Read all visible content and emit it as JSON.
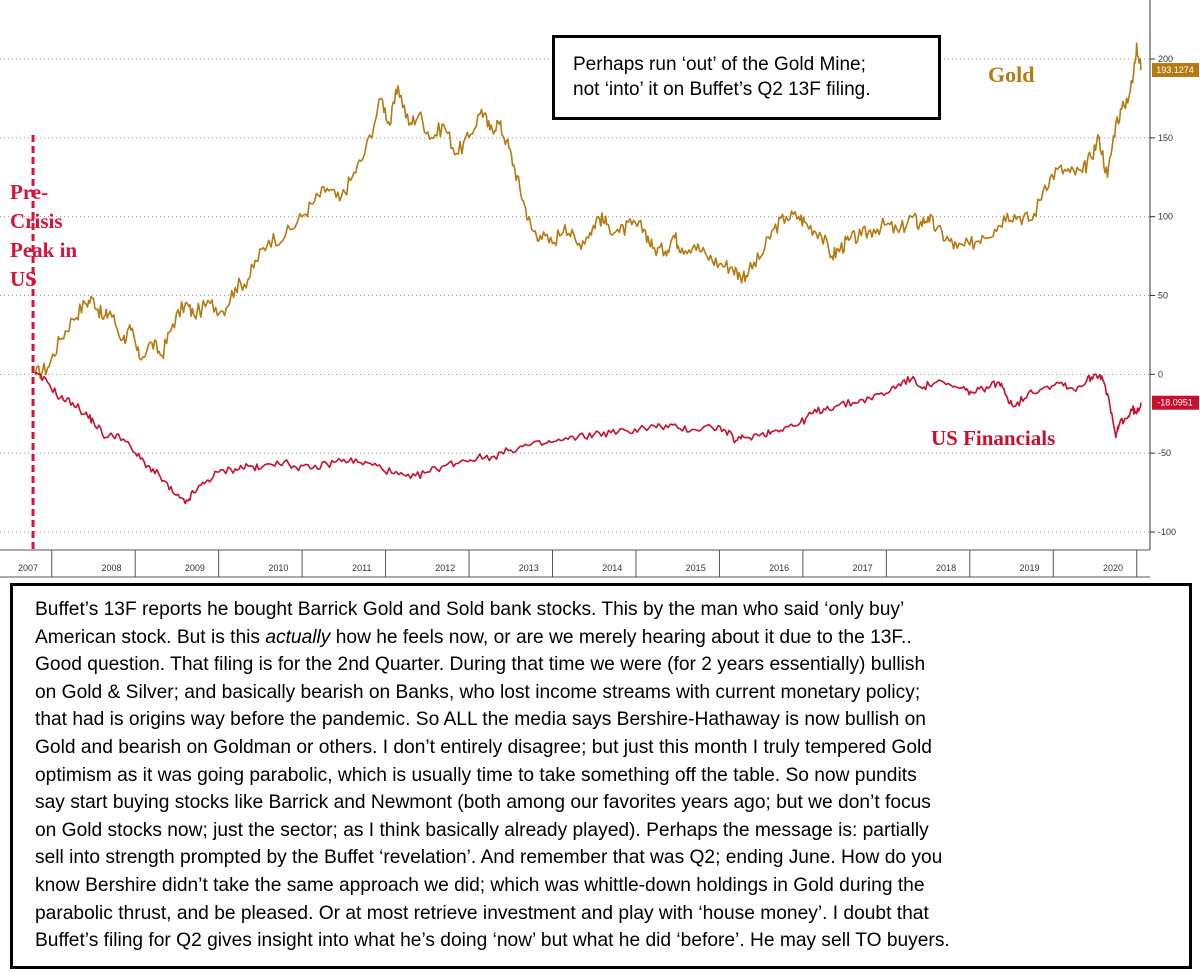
{
  "chart_data": {
    "type": "line",
    "title": "",
    "xlabel": "",
    "ylabel": "",
    "x_ticks": [
      "2007",
      "2008",
      "2009",
      "2010",
      "2011",
      "2012",
      "2013",
      "2014",
      "2015",
      "2016",
      "2017",
      "2018",
      "2019",
      "2020"
    ],
    "y_ticks": [
      200,
      150,
      100,
      50,
      0,
      -50,
      -100
    ],
    "ylim": [
      -110,
      212
    ],
    "xlim": [
      2007.25,
      2020.6
    ],
    "grid": true,
    "axis_side": "right",
    "series": [
      {
        "name": "Gold",
        "color": "#b57a12",
        "end_value": "193.1274",
        "points": [
          [
            2007.3,
            0
          ],
          [
            2007.45,
            4
          ],
          [
            2007.6,
            22
          ],
          [
            2007.75,
            35
          ],
          [
            2007.9,
            45
          ],
          [
            2008.0,
            48
          ],
          [
            2008.12,
            35
          ],
          [
            2008.2,
            40
          ],
          [
            2008.35,
            22
          ],
          [
            2008.45,
            28
          ],
          [
            2008.55,
            10
          ],
          [
            2008.7,
            20
          ],
          [
            2008.82,
            12
          ],
          [
            2008.95,
            32
          ],
          [
            2009.1,
            45
          ],
          [
            2009.2,
            38
          ],
          [
            2009.4,
            45
          ],
          [
            2009.55,
            40
          ],
          [
            2009.7,
            55
          ],
          [
            2009.85,
            60
          ],
          [
            2009.95,
            72
          ],
          [
            2010.1,
            85
          ],
          [
            2010.3,
            88
          ],
          [
            2010.5,
            100
          ],
          [
            2010.65,
            110
          ],
          [
            2010.8,
            118
          ],
          [
            2010.95,
            110
          ],
          [
            2011.1,
            125
          ],
          [
            2011.25,
            140
          ],
          [
            2011.45,
            175
          ],
          [
            2011.55,
            158
          ],
          [
            2011.65,
            183
          ],
          [
            2011.78,
            158
          ],
          [
            2011.9,
            165
          ],
          [
            2012.05,
            150
          ],
          [
            2012.2,
            158
          ],
          [
            2012.35,
            140
          ],
          [
            2012.5,
            150
          ],
          [
            2012.65,
            168
          ],
          [
            2012.75,
            155
          ],
          [
            2012.85,
            160
          ],
          [
            2012.95,
            148
          ],
          [
            2013.05,
            130
          ],
          [
            2013.15,
            110
          ],
          [
            2013.25,
            92
          ],
          [
            2013.35,
            88
          ],
          [
            2013.5,
            83
          ],
          [
            2013.65,
            95
          ],
          [
            2013.8,
            82
          ],
          [
            2013.95,
            90
          ],
          [
            2014.05,
            100
          ],
          [
            2014.15,
            95
          ],
          [
            2014.3,
            90
          ],
          [
            2014.45,
            95
          ],
          [
            2014.6,
            92
          ],
          [
            2014.7,
            80
          ],
          [
            2014.85,
            78
          ],
          [
            2014.95,
            88
          ],
          [
            2015.05,
            80
          ],
          [
            2015.2,
            82
          ],
          [
            2015.35,
            75
          ],
          [
            2015.5,
            70
          ],
          [
            2015.65,
            68
          ],
          [
            2015.75,
            62
          ],
          [
            2015.85,
            65
          ],
          [
            2016.0,
            75
          ],
          [
            2016.15,
            92
          ],
          [
            2016.3,
            100
          ],
          [
            2016.45,
            100
          ],
          [
            2016.55,
            95
          ],
          [
            2016.7,
            90
          ],
          [
            2016.85,
            75
          ],
          [
            2016.95,
            80
          ],
          [
            2017.05,
            85
          ],
          [
            2017.2,
            88
          ],
          [
            2017.35,
            92
          ],
          [
            2017.5,
            95
          ],
          [
            2017.65,
            90
          ],
          [
            2017.8,
            100
          ],
          [
            2017.9,
            95
          ],
          [
            2018.0,
            100
          ],
          [
            2018.1,
            92
          ],
          [
            2018.25,
            85
          ],
          [
            2018.35,
            80
          ],
          [
            2018.5,
            82
          ],
          [
            2018.65,
            88
          ],
          [
            2018.8,
            92
          ],
          [
            2018.95,
            102
          ],
          [
            2019.1,
            100
          ],
          [
            2019.25,
            98
          ],
          [
            2019.4,
            120
          ],
          [
            2019.55,
            130
          ],
          [
            2019.7,
            128
          ],
          [
            2019.85,
            128
          ],
          [
            2019.95,
            138
          ],
          [
            2020.05,
            150
          ],
          [
            2020.15,
            125
          ],
          [
            2020.25,
            160
          ],
          [
            2020.35,
            170
          ],
          [
            2020.45,
            185
          ],
          [
            2020.5,
            210
          ],
          [
            2020.55,
            193
          ]
        ]
      },
      {
        "name": "US Financials",
        "color": "#c8102e",
        "end_value": "-18.0951",
        "points": [
          [
            2007.3,
            0
          ],
          [
            2007.45,
            -5
          ],
          [
            2007.6,
            -15
          ],
          [
            2007.75,
            -18
          ],
          [
            2007.9,
            -25
          ],
          [
            2008.0,
            -30
          ],
          [
            2008.15,
            -40
          ],
          [
            2008.3,
            -38
          ],
          [
            2008.5,
            -50
          ],
          [
            2008.65,
            -58
          ],
          [
            2008.8,
            -65
          ],
          [
            2008.95,
            -75
          ],
          [
            2009.1,
            -82
          ],
          [
            2009.2,
            -75
          ],
          [
            2009.35,
            -68
          ],
          [
            2009.5,
            -62
          ],
          [
            2009.7,
            -60
          ],
          [
            2009.85,
            -58
          ],
          [
            2010.0,
            -60
          ],
          [
            2010.2,
            -55
          ],
          [
            2010.4,
            -58
          ],
          [
            2010.6,
            -60
          ],
          [
            2010.8,
            -57
          ],
          [
            2011.0,
            -54
          ],
          [
            2011.2,
            -56
          ],
          [
            2011.4,
            -58
          ],
          [
            2011.6,
            -63
          ],
          [
            2011.8,
            -66
          ],
          [
            2012.0,
            -62
          ],
          [
            2012.2,
            -58
          ],
          [
            2012.4,
            -55
          ],
          [
            2012.6,
            -53
          ],
          [
            2012.8,
            -52
          ],
          [
            2013.0,
            -48
          ],
          [
            2013.2,
            -45
          ],
          [
            2013.4,
            -44
          ],
          [
            2013.6,
            -42
          ],
          [
            2013.8,
            -40
          ],
          [
            2014.0,
            -38
          ],
          [
            2014.2,
            -37
          ],
          [
            2014.4,
            -36
          ],
          [
            2014.6,
            -34
          ],
          [
            2014.8,
            -33
          ],
          [
            2015.0,
            -34
          ],
          [
            2015.2,
            -35
          ],
          [
            2015.4,
            -33
          ],
          [
            2015.55,
            -35
          ],
          [
            2015.7,
            -42
          ],
          [
            2015.8,
            -40
          ],
          [
            2016.0,
            -38
          ],
          [
            2016.15,
            -36
          ],
          [
            2016.3,
            -33
          ],
          [
            2016.45,
            -32
          ],
          [
            2016.6,
            -25
          ],
          [
            2016.75,
            -22
          ],
          [
            2016.9,
            -20
          ],
          [
            2017.1,
            -18
          ],
          [
            2017.3,
            -15
          ],
          [
            2017.5,
            -12
          ],
          [
            2017.65,
            -6
          ],
          [
            2017.8,
            -3
          ],
          [
            2017.95,
            -8
          ],
          [
            2018.1,
            -5
          ],
          [
            2018.3,
            -8
          ],
          [
            2018.45,
            -10
          ],
          [
            2018.55,
            -12
          ],
          [
            2018.7,
            -8
          ],
          [
            2018.85,
            -5
          ],
          [
            2018.95,
            -15
          ],
          [
            2019.05,
            -20
          ],
          [
            2019.2,
            -12
          ],
          [
            2019.4,
            -8
          ],
          [
            2019.6,
            -5
          ],
          [
            2019.75,
            -10
          ],
          [
            2019.9,
            -4
          ],
          [
            2020.0,
            0
          ],
          [
            2020.08,
            -1
          ],
          [
            2020.18,
            -20
          ],
          [
            2020.25,
            -40
          ],
          [
            2020.3,
            -30
          ],
          [
            2020.38,
            -28
          ],
          [
            2020.45,
            -22
          ],
          [
            2020.5,
            -25
          ],
          [
            2020.55,
            -18
          ]
        ]
      }
    ],
    "reference_line": {
      "x": 2007.3,
      "color": "#d4143a"
    },
    "annotations": {
      "note_lines": [
        "Perhaps run ‘out’ of the Gold Mine;",
        "not ‘into’ it on Buffet’s Q2 13F filing."
      ],
      "gold_label": "Gold",
      "financials_label": "US Financials",
      "peak_lines": [
        "Pre-",
        "Crisis",
        "Peak in",
        "US"
      ]
    }
  },
  "commentary": {
    "lines": [
      "Buffet’s 13F reports he bought Barrick Gold and Sold bank stocks. This by the man who said ‘only buy’",
      "American stock. But is this |actually| how he feels now, or are we merely hearing about it due to the 13F..",
      "Good question. That filing is for the 2nd Quarter. During that time we were (for 2 years essentially) bullish",
      "on Gold & Silver; and basically bearish on Banks, who lost income streams with current monetary policy;",
      "that had is origins way before the pandemic. So ALL the media says Bershire-Hathaway is now bullish on",
      "Gold and bearish on Goldman or others. I don’t entirely disagree; but just this month I truly tempered Gold",
      "optimism as it was going parabolic, which is usually time to take something off the table. So now pundits",
      "say start buying stocks like Barrick and Newmont (both among our favorites years ago; but we don’t focus",
      "on Gold stocks now; just the sector; as I think basically already played). Perhaps the message is: partially",
      "sell into strength prompted by the Buffet ‘revelation’. And remember that was Q2; ending June. How do you",
      "know Bershire didn’t take the same approach we did; which was whittle-down holdings in Gold during the",
      "parabolic thrust, and be pleased. Or at most retrieve investment and play with ‘house money’. I doubt that",
      "Buffet’s filing for Q2 gives insight into what he’s doing ‘now’ but what he did ‘before’. He may sell TO buyers."
    ]
  }
}
